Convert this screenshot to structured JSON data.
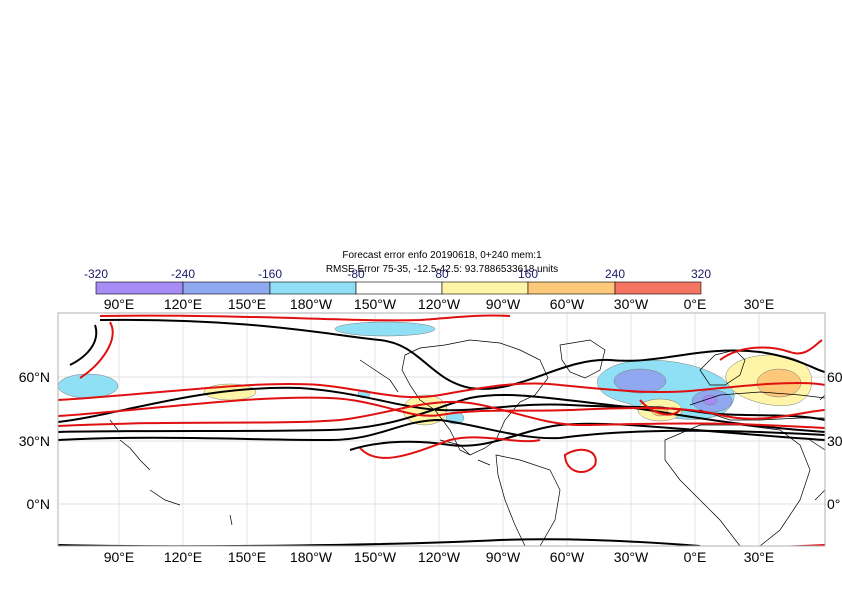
{
  "title": {
    "line1": "Forecast error  enfo 20190618, 0+240 mem:1",
    "line2": "RMSE Error 75-35, -12.5-42.5: 93.7886533618 units"
  },
  "colorbar": {
    "labels": [
      "-320",
      "-240",
      "-160",
      "-80",
      "80",
      "160",
      "240",
      "320"
    ],
    "colors": [
      "#a78cf5",
      "#8fa8f0",
      "#8fe0f5",
      "#ffffff",
      "#fff5a8",
      "#fdc87a",
      "#f47560"
    ]
  },
  "axes": {
    "lon_top": [
      "90°E",
      "120°E",
      "150°E",
      "180°W",
      "150°W",
      "120°W",
      "90°W",
      "60°W",
      "30°W",
      "0°E",
      "30°E"
    ],
    "lon_bottom": [
      "90°E",
      "120°E",
      "150°E",
      "180°W",
      "150°W",
      "120°W",
      "90°W",
      "60°W",
      "30°W",
      "0°E",
      "30°E"
    ],
    "lat_left": [
      "60°N",
      "30°N",
      "0°N"
    ],
    "lat_right": [
      "60",
      "30",
      "0°"
    ]
  },
  "map": {
    "projection": "cylindrical",
    "lon_range": [
      "60°E",
      "60°E"
    ],
    "lat_range": [
      "18°S",
      "88°N"
    ],
    "contour_colors": {
      "forecast": "#000000",
      "analysis": "#e01010"
    }
  }
}
